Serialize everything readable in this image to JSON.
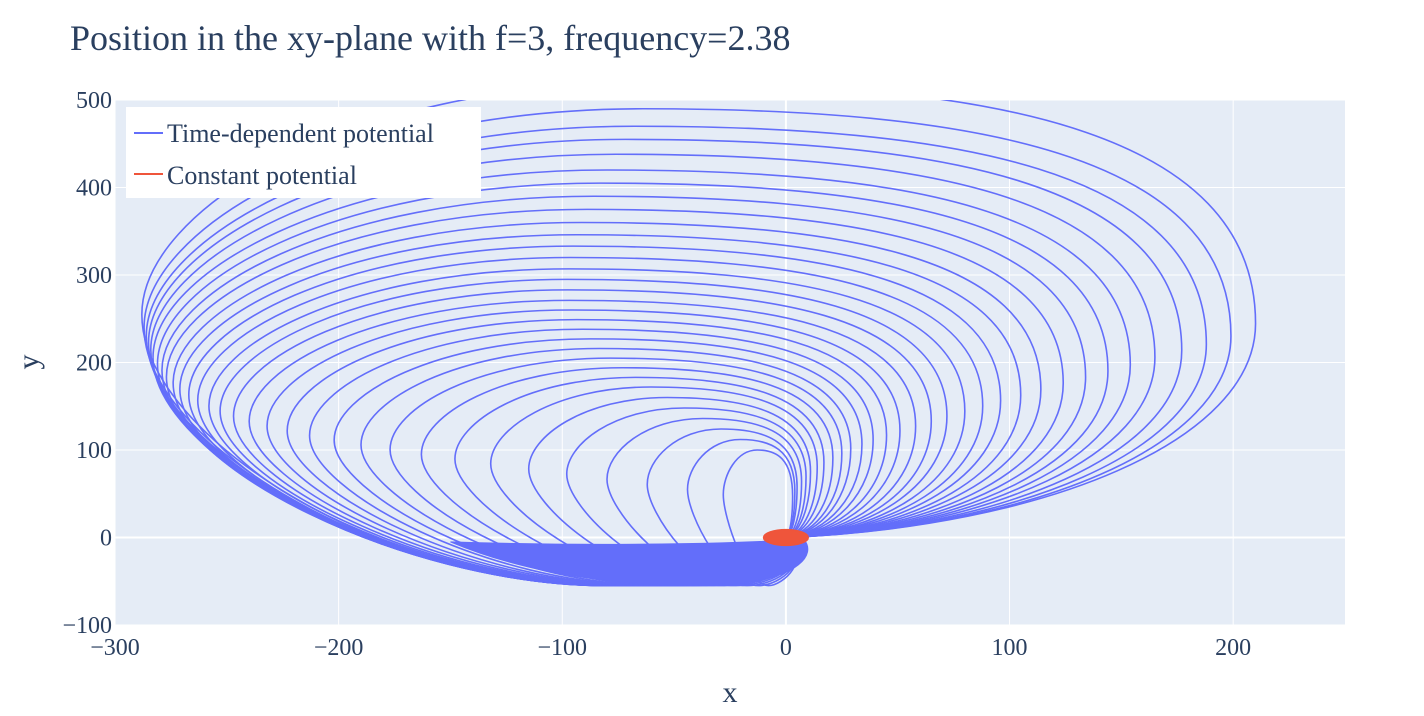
{
  "chart_data": {
    "type": "line",
    "title": "Position in the xy-plane with f=3, frequency=2.38",
    "xlabel": "x",
    "ylabel": "y",
    "xlim": [
      -300,
      250
    ],
    "ylim": [
      -100,
      500
    ],
    "x_ticks": [
      -300,
      -200,
      -100,
      0,
      100,
      200
    ],
    "y_ticks": [
      -100,
      0,
      100,
      200,
      300,
      400,
      500
    ],
    "x_tick_labels": [
      "−300",
      "−200",
      "−100",
      "0",
      "100",
      "200"
    ],
    "y_tick_labels": [
      "−100",
      "0",
      "100",
      "200",
      "300",
      "400",
      "500"
    ],
    "grid": true,
    "legend_position": "top-left",
    "series": [
      {
        "name": "Time-dependent potential",
        "color": "#636efa",
        "shape": "family of nested loops all touching the origin",
        "loops": 32,
        "x_right_max": [
          210,
          199,
          188,
          177,
          165,
          154,
          144,
          134,
          124,
          114,
          105,
          96,
          88,
          80,
          72,
          65,
          58,
          51,
          45,
          39,
          34,
          29,
          25,
          21,
          17,
          14,
          11,
          9,
          7,
          5,
          4,
          3
        ],
        "x_left_min": [
          -288,
          -287,
          -286,
          -285,
          -284,
          -283,
          -281,
          -279,
          -277,
          -274,
          -271,
          -267,
          -263,
          -258,
          -253,
          -247,
          -240,
          -232,
          -223,
          -213,
          -202,
          -190,
          -177,
          -163,
          -148,
          -132,
          -115,
          -98,
          -80,
          -62,
          -44,
          -28
        ],
        "y_top_max": [
          520,
          490,
          470,
          455,
          438,
          420,
          405,
          390,
          375,
          360,
          346,
          333,
          320,
          307,
          295,
          283,
          271,
          260,
          249,
          238,
          227,
          216,
          205,
          194,
          183,
          172,
          160,
          148,
          136,
          124,
          112,
          100
        ],
        "y_bottom_min": -55
      },
      {
        "name": "Constant potential",
        "color": "#ef553b",
        "shape": "small filled ellipse at origin",
        "center": [
          0,
          0
        ],
        "x_radius": 10,
        "y_radius": 9
      }
    ]
  }
}
